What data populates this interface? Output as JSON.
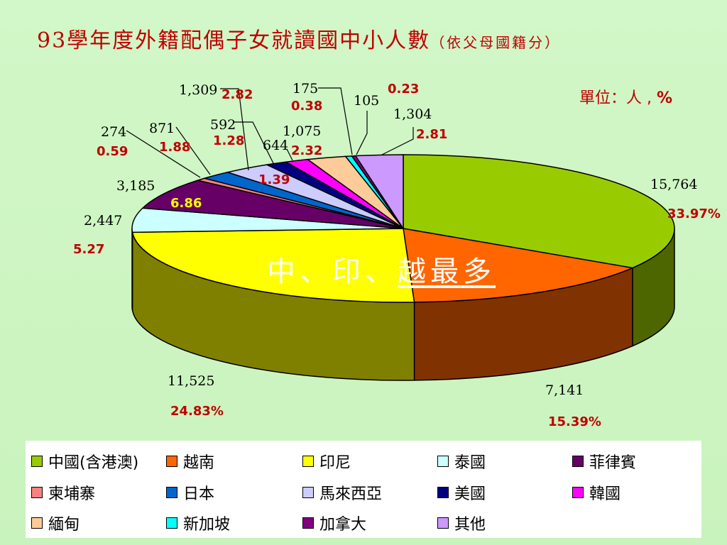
{
  "title": {
    "main": "93學年度外籍配偶子女就讀國中小人數",
    "sub": "（依父母國籍分）"
  },
  "unit": {
    "text": "單位：人 , ",
    "pct": "%"
  },
  "annotation": {
    "plain": "中、印、",
    "underlined": "越最多"
  },
  "chart_data": {
    "type": "pie",
    "title": "93學年度外籍配偶子女就讀國中小人數（依父母國籍分）",
    "unit_label": "單位：人 , %",
    "three_d": true,
    "legend_position": "bottom",
    "slices": [
      {
        "name": "中國(含港澳)",
        "value": 15764,
        "value_label": "15,764",
        "percent": "33.97%",
        "color": "#99cc00"
      },
      {
        "name": "越南",
        "value": 7141,
        "value_label": "7,141",
        "percent": "15.39%",
        "color": "#ff6600"
      },
      {
        "name": "印尼",
        "value": 11525,
        "value_label": "11,525",
        "percent": "24.83%",
        "color": "#ffff00"
      },
      {
        "name": "泰國",
        "value": 2447,
        "value_label": "2,447",
        "percent": "5.27",
        "color": "#ccffff"
      },
      {
        "name": "菲律賓",
        "value": 3185,
        "value_label": "3,185",
        "percent": "6.86",
        "color": "#660066"
      },
      {
        "name": "柬埔寨",
        "value": 274,
        "value_label": "274",
        "percent": "0.59",
        "color": "#ff8080"
      },
      {
        "name": "日本",
        "value": 871,
        "value_label": "871",
        "percent": "1.88",
        "color": "#0066cc"
      },
      {
        "name": "馬來西亞",
        "value": 1309,
        "value_label": "1,309",
        "percent": "2.82",
        "color": "#ccccff"
      },
      {
        "name": "美國",
        "value": 592,
        "value_label": "592",
        "percent": "1.28",
        "color": "#000080"
      },
      {
        "name": "韓國",
        "value": 644,
        "value_label": "644",
        "percent": "1.39",
        "color": "#ff00ff"
      },
      {
        "name": "緬甸",
        "value": 1075,
        "value_label": "1,075",
        "percent": "2.32",
        "color": "#ffcc99"
      },
      {
        "name": "新加坡",
        "value": 175,
        "value_label": "175",
        "percent": "0.38",
        "color": "#00ffff"
      },
      {
        "name": "加拿大",
        "value": 105,
        "value_label": "105",
        "percent": "0.23",
        "color": "#800080"
      },
      {
        "name": "其他",
        "value": 1304,
        "value_label": "1,304",
        "percent": "2.81",
        "color": "#cc99ff"
      }
    ]
  }
}
